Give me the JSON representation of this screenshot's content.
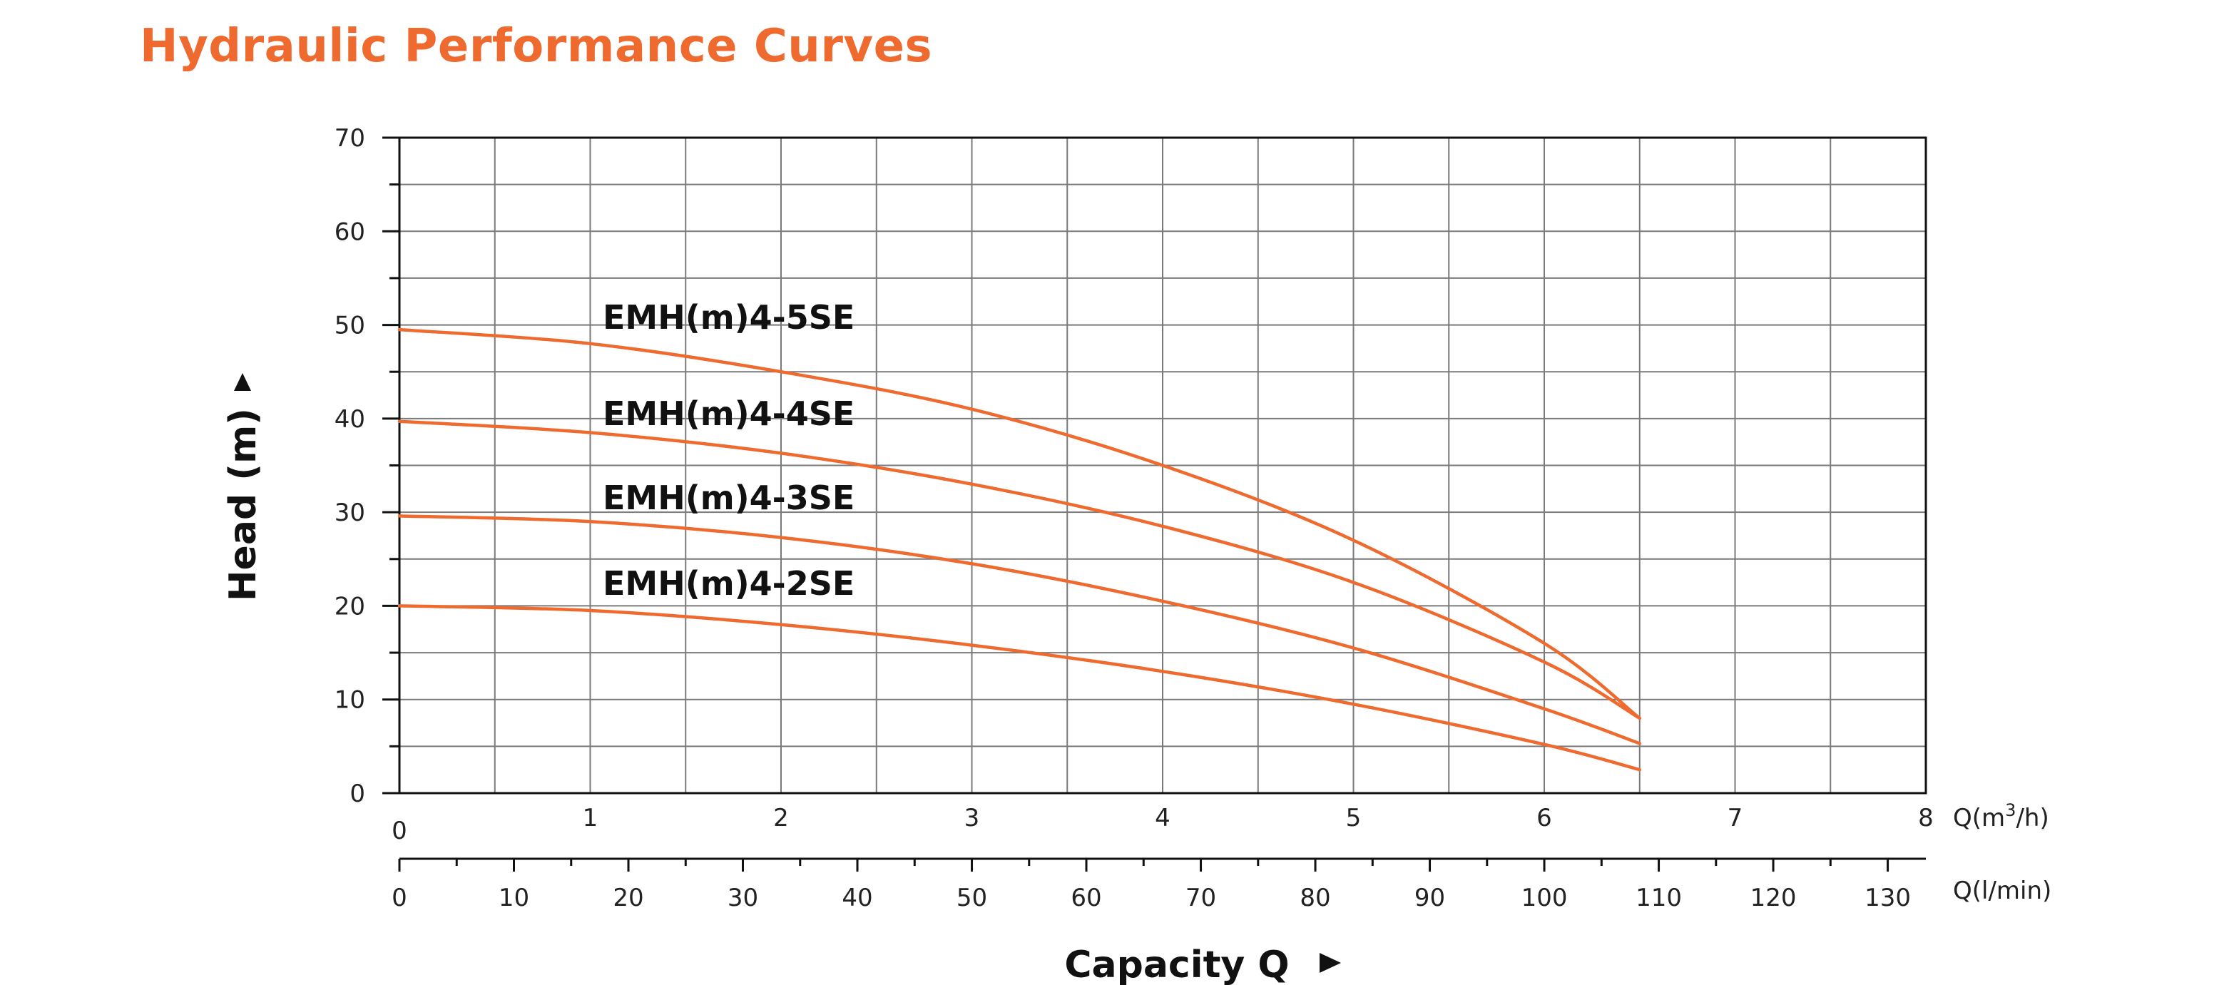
{
  "header": {
    "title": "Hydraulic Performance Curves"
  },
  "colors": {
    "title": "#EE6A2F",
    "curve": "#EE6A2F",
    "text": "#111111"
  },
  "chart_data": {
    "type": "line",
    "title": "",
    "ylabel": "Head (m)",
    "xlabel": "Capacity Q",
    "ylim": [
      0,
      70
    ],
    "xlim": [
      0,
      8
    ],
    "grid": true,
    "y_ticks": [
      0,
      10,
      20,
      30,
      40,
      50,
      60,
      70
    ],
    "x_primary": {
      "unit": "Q(m³/h)",
      "unit_base": "Q(m",
      "unit_sup": "3",
      "unit_tail": "/h)",
      "ticks": [
        0,
        1,
        2,
        3,
        4,
        5,
        6,
        7,
        8
      ]
    },
    "x_secondary": {
      "unit": "Q(l/min)",
      "ticks": [
        0,
        10,
        20,
        30,
        40,
        50,
        60,
        70,
        80,
        90,
        100,
        110,
        120,
        130
      ],
      "lim": [
        0,
        133.33
      ]
    },
    "series": [
      {
        "name": "EMH(m)4-5SE",
        "x": [
          0,
          1,
          2,
          3,
          4,
          5,
          6,
          6.5
        ],
        "y": [
          49.5,
          48,
          45,
          41,
          35,
          27,
          16,
          8
        ]
      },
      {
        "name": "EMH(m)4-4SE",
        "x": [
          0,
          1,
          2,
          3,
          4,
          5,
          6,
          6.5
        ],
        "y": [
          39.7,
          38.5,
          36.3,
          33,
          28.5,
          22.5,
          14,
          8
        ]
      },
      {
        "name": "EMH(m)4-3SE",
        "x": [
          0,
          1,
          2,
          3,
          4,
          5,
          6,
          6.5
        ],
        "y": [
          29.6,
          29,
          27.3,
          24.5,
          20.5,
          15.5,
          9,
          5.3
        ]
      },
      {
        "name": "EMH(m)4-2SE",
        "x": [
          0,
          1,
          2,
          3,
          4,
          5,
          6,
          6.5
        ],
        "y": [
          20,
          19.5,
          18,
          15.8,
          13,
          9.5,
          5.2,
          2.5
        ]
      }
    ]
  }
}
